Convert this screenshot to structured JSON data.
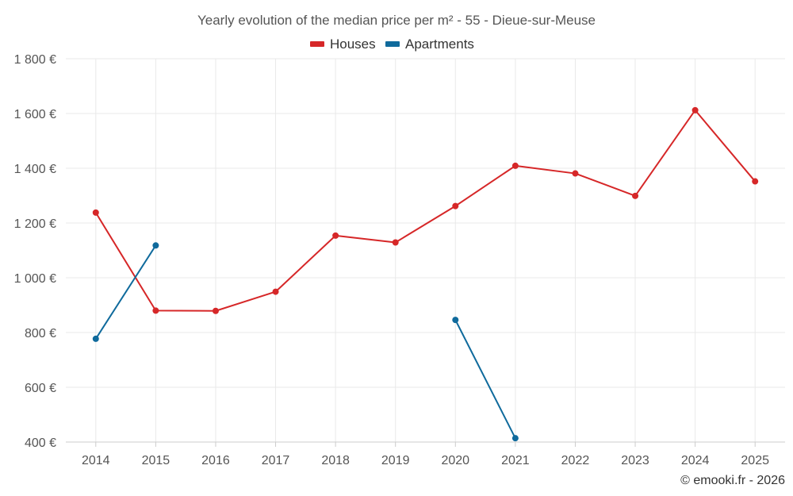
{
  "chart_data": {
    "type": "line",
    "title": "Yearly evolution of the median price per m² - 55 - Dieue-sur-Meuse",
    "x": [
      2014,
      2015,
      2016,
      2017,
      2018,
      2019,
      2020,
      2021,
      2022,
      2023,
      2024,
      2025
    ],
    "x_tick_labels": [
      "2014",
      "2015",
      "2016",
      "2017",
      "2018",
      "2019",
      "2020",
      "2021",
      "2022",
      "2023",
      "2024",
      "2025"
    ],
    "ylim": [
      400,
      1800
    ],
    "y_ticks": [
      400,
      600,
      800,
      1000,
      1200,
      1400,
      1600,
      1800
    ],
    "y_tick_labels": [
      "400 €",
      "600 €",
      "800 €",
      "1 000 €",
      "1 200 €",
      "1 400 €",
      "1 600 €",
      "1 800 €"
    ],
    "grid": true,
    "legend_position": "top-center",
    "series": [
      {
        "name": "Houses",
        "color": "#d62728",
        "values": [
          1238,
          880,
          879,
          949,
          1154,
          1129,
          1262,
          1409,
          1381,
          1299,
          1612,
          1352
        ]
      },
      {
        "name": "Apartments",
        "color": "#0f6a9c",
        "values": [
          777,
          1118,
          null,
          null,
          null,
          null,
          846,
          414,
          null,
          null,
          null,
          null
        ]
      }
    ],
    "credit": "© emooki.fr - 2026"
  }
}
